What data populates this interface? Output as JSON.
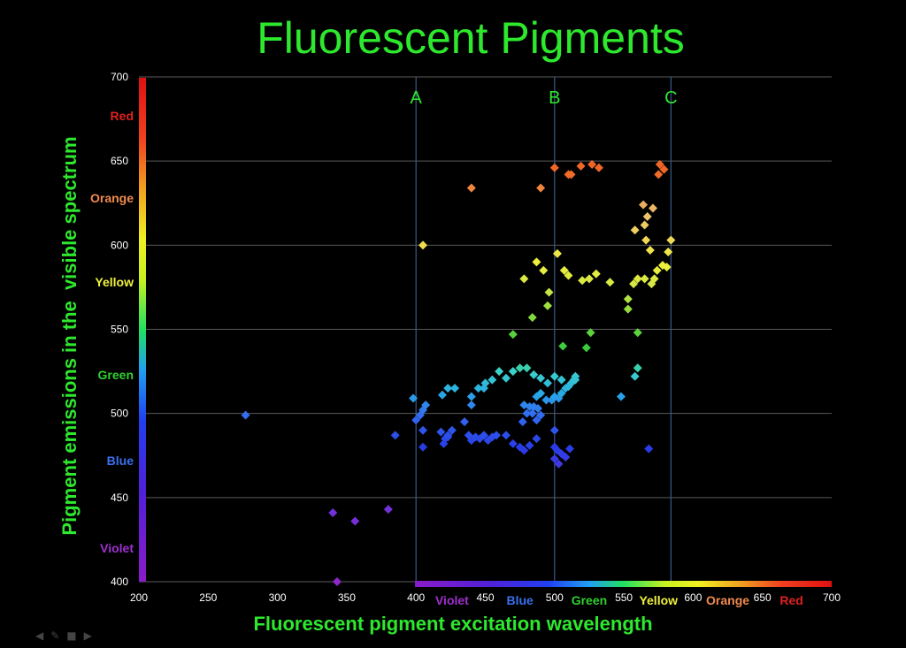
{
  "title": "Fluorescent Pigments",
  "chart_data": {
    "type": "scatter",
    "title": "Fluorescent Pigments",
    "xlabel": "Fluorescent pigment excitation wavelength",
    "ylabel": "Pigment emissions in the  visible spectrum",
    "xlim": [
      200,
      700
    ],
    "ylim": [
      400,
      700
    ],
    "x_ticks": [
      200,
      250,
      300,
      350,
      400,
      450,
      500,
      550,
      600,
      650,
      700
    ],
    "y_ticks": [
      400,
      450,
      500,
      550,
      600,
      650,
      700
    ],
    "grid_y": true,
    "reference_lines": [
      {
        "label": "A",
        "x": 400
      },
      {
        "label": "B",
        "x": 500
      },
      {
        "label": "C",
        "x": 584
      }
    ],
    "y_color_bands": [
      {
        "label": "Red",
        "y": 677,
        "color": "#e02020"
      },
      {
        "label": "Orange",
        "y": 628,
        "color": "#f08a50"
      },
      {
        "label": "Yellow",
        "y": 578,
        "color": "#f0f040"
      },
      {
        "label": "Green",
        "y": 523,
        "color": "#30d030"
      },
      {
        "label": "Blue",
        "y": 472,
        "color": "#3a70ee"
      },
      {
        "label": "Violet",
        "y": 420,
        "color": "#a030d0"
      }
    ],
    "x_color_bands": [
      {
        "label": "Violet",
        "x": 426,
        "color": "#a030d0"
      },
      {
        "label": "Blue",
        "x": 475,
        "color": "#3a70ee"
      },
      {
        "label": "Green",
        "x": 525,
        "color": "#30d030"
      },
      {
        "label": "Yellow",
        "x": 575,
        "color": "#f0f040"
      },
      {
        "label": "Orange",
        "x": 625,
        "color": "#f08a50"
      },
      {
        "label": "Red",
        "x": 671,
        "color": "#e02020"
      }
    ],
    "points": [
      [
        277,
        499
      ],
      [
        340,
        441
      ],
      [
        356,
        436
      ],
      [
        380,
        443
      ],
      [
        343,
        400
      ],
      [
        385,
        487
      ],
      [
        398,
        509
      ],
      [
        400,
        496
      ],
      [
        403,
        499
      ],
      [
        405,
        502
      ],
      [
        407,
        505
      ],
      [
        405,
        490
      ],
      [
        405,
        480
      ],
      [
        418,
        489
      ],
      [
        421,
        485
      ],
      [
        423,
        486
      ],
      [
        426,
        490
      ],
      [
        423,
        487
      ],
      [
        420,
        482
      ],
      [
        419,
        511
      ],
      [
        423,
        515
      ],
      [
        428,
        515
      ],
      [
        435,
        495
      ],
      [
        438,
        487
      ],
      [
        440,
        484
      ],
      [
        443,
        486
      ],
      [
        446,
        485
      ],
      [
        449,
        487
      ],
      [
        452,
        484
      ],
      [
        455,
        486
      ],
      [
        458,
        487
      ],
      [
        465,
        487
      ],
      [
        470,
        482
      ],
      [
        475,
        480
      ],
      [
        478,
        478
      ],
      [
        482,
        481
      ],
      [
        484,
        500
      ],
      [
        487,
        496
      ],
      [
        490,
        499
      ],
      [
        487,
        485
      ],
      [
        477,
        495
      ],
      [
        480,
        500
      ],
      [
        485,
        504
      ],
      [
        488,
        503
      ],
      [
        482,
        504
      ],
      [
        478,
        505
      ],
      [
        487,
        510
      ],
      [
        490,
        512
      ],
      [
        494,
        508
      ],
      [
        498,
        508
      ],
      [
        500,
        510
      ],
      [
        503,
        509
      ],
      [
        505,
        512
      ],
      [
        508,
        515
      ],
      [
        510,
        516
      ],
      [
        512,
        518
      ],
      [
        514,
        520
      ],
      [
        515,
        522
      ],
      [
        505,
        520
      ],
      [
        500,
        522
      ],
      [
        495,
        518
      ],
      [
        490,
        521
      ],
      [
        485,
        523
      ],
      [
        480,
        527
      ],
      [
        475,
        527
      ],
      [
        470,
        525
      ],
      [
        465,
        521
      ],
      [
        460,
        525
      ],
      [
        455,
        520
      ],
      [
        450,
        518
      ],
      [
        445,
        515
      ],
      [
        440,
        510
      ],
      [
        440,
        505
      ],
      [
        449,
        515
      ],
      [
        500,
        490
      ],
      [
        500,
        480
      ],
      [
        502,
        478
      ],
      [
        505,
        476
      ],
      [
        500,
        473
      ],
      [
        503,
        470
      ],
      [
        508,
        474
      ],
      [
        511,
        479
      ],
      [
        568,
        479
      ],
      [
        470,
        547
      ],
      [
        478,
        580
      ],
      [
        487,
        590
      ],
      [
        492,
        585
      ],
      [
        502,
        595
      ],
      [
        507,
        585
      ],
      [
        510,
        582
      ],
      [
        520,
        579
      ],
      [
        525,
        580
      ],
      [
        530,
        583
      ],
      [
        540,
        578
      ],
      [
        553,
        568
      ],
      [
        553,
        562
      ],
      [
        557,
        577
      ],
      [
        560,
        580
      ],
      [
        565,
        580
      ],
      [
        570,
        577
      ],
      [
        572,
        580
      ],
      [
        574,
        585
      ],
      [
        578,
        588
      ],
      [
        582,
        596
      ],
      [
        581,
        587
      ],
      [
        569,
        597
      ],
      [
        566,
        603
      ],
      [
        558,
        609
      ],
      [
        584,
        603
      ],
      [
        565,
        612
      ],
      [
        519,
        647
      ],
      [
        527,
        648
      ],
      [
        532,
        646
      ],
      [
        512,
        642
      ],
      [
        500,
        646
      ],
      [
        510,
        642
      ],
      [
        405,
        600
      ],
      [
        440,
        634
      ],
      [
        490,
        634
      ],
      [
        564,
        624
      ],
      [
        567,
        617
      ],
      [
        571,
        622
      ],
      [
        575,
        642
      ],
      [
        579,
        645
      ],
      [
        576,
        648
      ],
      [
        560,
        548
      ],
      [
        496,
        572
      ],
      [
        506,
        540
      ],
      [
        495,
        564
      ],
      [
        523,
        539
      ],
      [
        526,
        548
      ],
      [
        484,
        557
      ],
      [
        515,
        520
      ],
      [
        560,
        527
      ],
      [
        558,
        522
      ],
      [
        548,
        510
      ]
    ]
  }
}
